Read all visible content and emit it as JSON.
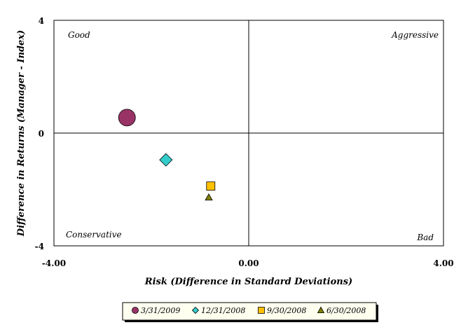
{
  "chart_data": {
    "type": "scatter",
    "xlabel": "Risk (Difference in Standard Deviations)",
    "ylabel": "Difference in Returns (Manager - Index)",
    "xlim": [
      -4,
      4
    ],
    "ylim": [
      -4,
      4
    ],
    "x_ticks": [
      "-4.00",
      "0.00",
      "4.00"
    ],
    "y_ticks": [
      "4",
      "0",
      "-4"
    ],
    "quadrant_labels": {
      "top_left": "Good",
      "top_right": "Aggressive",
      "bottom_left": "Conservative",
      "bottom_right": "Bad"
    },
    "legend_position": "bottom",
    "series": [
      {
        "name": "3/31/2009",
        "marker": "circle",
        "color": "#993366",
        "x": -2.5,
        "y": 0.55
      },
      {
        "name": "12/31/2008",
        "marker": "diamond",
        "color": "#33CCCC",
        "x": -1.7,
        "y": -0.95
      },
      {
        "name": "9/30/2008",
        "marker": "square",
        "color": "#FFC000",
        "x": -0.78,
        "y": -1.88
      },
      {
        "name": "6/30/2008",
        "marker": "triangle",
        "color": "#808000",
        "x": -0.82,
        "y": -2.28
      }
    ]
  }
}
